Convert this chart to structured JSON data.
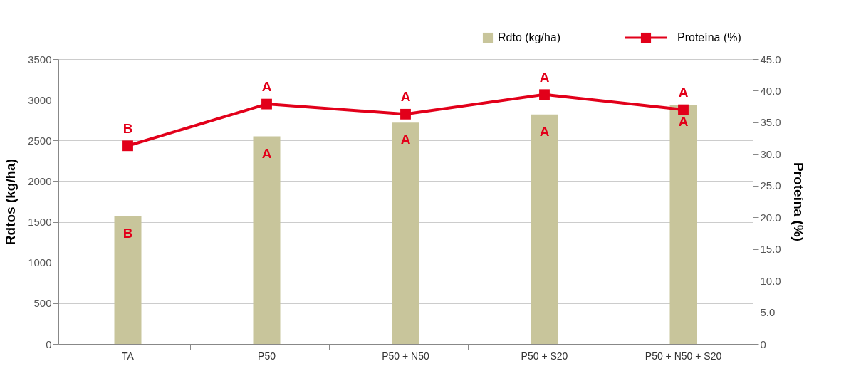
{
  "chart_data": {
    "type": "bar",
    "categories": [
      "TA",
      "P50",
      "P50 + N50",
      "P50 + S20",
      "P50 + N50 + S20"
    ],
    "ylabel": "Rdtos (kg/ha)",
    "y2label": "Proteína (%)",
    "series": [
      {
        "name": "Rdto (kg/ha)",
        "color": "#c8c59b",
        "values": [
          1570,
          2550,
          2720,
          2820,
          2940
        ],
        "value_labels": [
          "B",
          "A",
          "A",
          "A",
          "A"
        ]
      },
      {
        "name": "Proteína (%)",
        "type": "line",
        "axis": "y2",
        "color": "#e2001a",
        "marker": "square",
        "line_style": "solid",
        "values": [
          31.3,
          37.9,
          36.3,
          39.4,
          37.0
        ],
        "value_labels": [
          "B",
          "A",
          "A",
          "A",
          "A"
        ]
      }
    ],
    "ylim": [
      0,
      3500
    ],
    "yticks": [
      0,
      500,
      1000,
      1500,
      2000,
      2500,
      3000,
      3500
    ],
    "y2lim": [
      0,
      45
    ],
    "y2ticks": [
      {
        "value": 0,
        "label": "0"
      },
      {
        "value": 5,
        "label": "5.0"
      },
      {
        "value": 10,
        "label": "10.0"
      },
      {
        "value": 15,
        "label": "15.0"
      },
      {
        "value": 20,
        "label": "20.0"
      },
      {
        "value": 25,
        "label": "25.0"
      },
      {
        "value": 30,
        "label": "30.0"
      },
      {
        "value": 35,
        "label": "35.0"
      },
      {
        "value": 40,
        "label": "40.0"
      },
      {
        "value": 45,
        "label": "45.0"
      }
    ],
    "grid": "y",
    "legend": "top right"
  }
}
